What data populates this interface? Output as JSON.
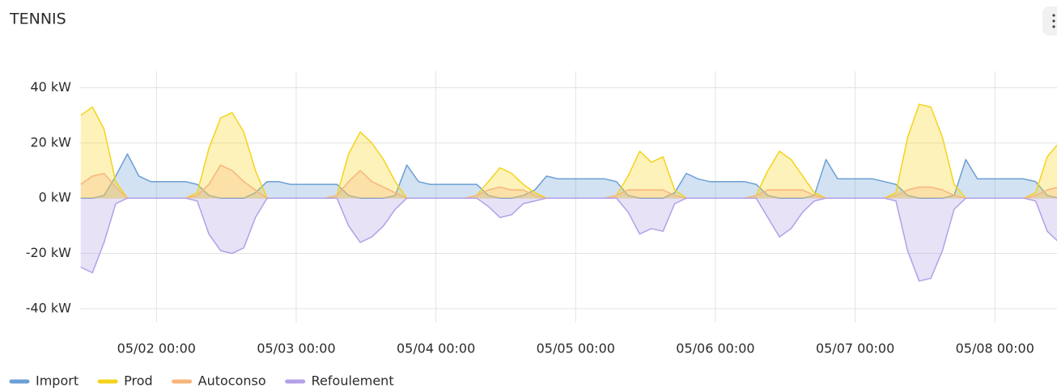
{
  "chart_data": {
    "type": "area",
    "title": "TENNIS",
    "x": [
      "05/01 11:00",
      "05/01 13:00",
      "05/01 15:00",
      "05/01 17:00",
      "05/01 19:00",
      "05/01 21:00",
      "05/01 23:00",
      "05/02 01:00",
      "05/02 03:00",
      "05/02 05:00",
      "05/02 07:00",
      "05/02 09:00",
      "05/02 11:00",
      "05/02 13:00",
      "05/02 15:00",
      "05/02 17:00",
      "05/02 19:00",
      "05/02 21:00",
      "05/02 23:00",
      "05/03 01:00",
      "05/03 03:00",
      "05/03 05:00",
      "05/03 07:00",
      "05/03 09:00",
      "05/03 11:00",
      "05/03 13:00",
      "05/03 15:00",
      "05/03 17:00",
      "05/03 19:00",
      "05/03 21:00",
      "05/03 23:00",
      "05/04 01:00",
      "05/04 03:00",
      "05/04 05:00",
      "05/04 07:00",
      "05/04 09:00",
      "05/04 11:00",
      "05/04 13:00",
      "05/04 15:00",
      "05/04 17:00",
      "05/04 19:00",
      "05/04 21:00",
      "05/04 23:00",
      "05/05 01:00",
      "05/05 03:00",
      "05/05 05:00",
      "05/05 07:00",
      "05/05 09:00",
      "05/05 11:00",
      "05/05 13:00",
      "05/05 15:00",
      "05/05 17:00",
      "05/05 19:00",
      "05/05 21:00",
      "05/05 23:00",
      "05/06 01:00",
      "05/06 03:00",
      "05/06 05:00",
      "05/06 07:00",
      "05/06 09:00",
      "05/06 11:00",
      "05/06 13:00",
      "05/06 15:00",
      "05/06 17:00",
      "05/06 19:00",
      "05/06 21:00",
      "05/06 23:00",
      "05/07 01:00",
      "05/07 03:00",
      "05/07 05:00",
      "05/07 07:00",
      "05/07 09:00",
      "05/07 11:00",
      "05/07 13:00",
      "05/07 15:00",
      "05/07 17:00",
      "05/07 19:00",
      "05/07 21:00",
      "05/07 23:00",
      "05/08 01:00",
      "05/08 03:00",
      "05/08 05:00",
      "05/08 07:00",
      "05/08 09:00",
      "05/08 11:00"
    ],
    "series": [
      {
        "name": "Import",
        "color": "#6a9fd4",
        "values": [
          0,
          0,
          1,
          8,
          16,
          8,
          6,
          6,
          6,
          6,
          5,
          1,
          0,
          0,
          0,
          2,
          6,
          6,
          5,
          5,
          5,
          5,
          5,
          1,
          0,
          0,
          0,
          1,
          12,
          6,
          5,
          5,
          5,
          5,
          5,
          1,
          0,
          0,
          1,
          3,
          8,
          7,
          7,
          7,
          7,
          7,
          6,
          1,
          0,
          0,
          0,
          2,
          9,
          7,
          6,
          6,
          6,
          6,
          5,
          1,
          0,
          0,
          0,
          1,
          14,
          7,
          7,
          7,
          7,
          6,
          5,
          1,
          0,
          0,
          0,
          1,
          14,
          7,
          7,
          7,
          7,
          7,
          6,
          1,
          0
        ]
      },
      {
        "name": "Prod",
        "color": "#f5d31c",
        "values": [
          30,
          33,
          25,
          6,
          0,
          0,
          0,
          0,
          0,
          0,
          2,
          18,
          29,
          31,
          24,
          10,
          0,
          0,
          0,
          0,
          0,
          0,
          1,
          16,
          24,
          20,
          14,
          6,
          0,
          0,
          0,
          0,
          0,
          0,
          1,
          6,
          11,
          9,
          5,
          2,
          0,
          0,
          0,
          0,
          0,
          0,
          1,
          8,
          17,
          13,
          15,
          3,
          0,
          0,
          0,
          0,
          0,
          0,
          1,
          10,
          17,
          14,
          8,
          2,
          0,
          0,
          0,
          0,
          0,
          0,
          2,
          22,
          34,
          33,
          22,
          5,
          0,
          0,
          0,
          0,
          0,
          0,
          2,
          15,
          20
        ]
      },
      {
        "name": "Autoconso",
        "color": "#f7b57c",
        "values": [
          5,
          8,
          9,
          4,
          0,
          0,
          0,
          0,
          0,
          0,
          1,
          5,
          12,
          10,
          6,
          3,
          0,
          0,
          0,
          0,
          0,
          0,
          1,
          6,
          10,
          6,
          4,
          2,
          0,
          0,
          0,
          0,
          0,
          0,
          1,
          3,
          4,
          3,
          3,
          1,
          0,
          0,
          0,
          0,
          0,
          0,
          1,
          3,
          3,
          3,
          3,
          1,
          0,
          0,
          0,
          0,
          0,
          0,
          1,
          3,
          3,
          3,
          3,
          1,
          0,
          0,
          0,
          0,
          0,
          0,
          1,
          3,
          4,
          4,
          3,
          1,
          0,
          0,
          0,
          0,
          0,
          0,
          1,
          3,
          4
        ]
      },
      {
        "name": "Refoulement",
        "color": "#b3a0e6",
        "values": [
          -25,
          -27,
          -16,
          -2,
          0,
          0,
          0,
          0,
          0,
          0,
          -1,
          -13,
          -19,
          -20,
          -18,
          -7,
          0,
          0,
          0,
          0,
          0,
          0,
          0,
          -10,
          -16,
          -14,
          -10,
          -4,
          0,
          0,
          0,
          0,
          0,
          0,
          0,
          -3,
          -7,
          -6,
          -2,
          -1,
          0,
          0,
          0,
          0,
          0,
          0,
          0,
          -5,
          -13,
          -11,
          -12,
          -2,
          0,
          0,
          0,
          0,
          0,
          0,
          0,
          -7,
          -14,
          -11,
          -5,
          -1,
          0,
          0,
          0,
          0,
          0,
          0,
          -1,
          -19,
          -30,
          -29,
          -19,
          -4,
          0,
          0,
          0,
          0,
          0,
          0,
          -1,
          -12,
          -16
        ]
      }
    ],
    "xlim": [
      "05/01 10:45",
      "05/08 10:40"
    ],
    "xticks": [
      "05/02 00:00",
      "05/03 00:00",
      "05/04 00:00",
      "05/05 00:00",
      "05/06 00:00",
      "05/07 00:00",
      "05/08 00:00"
    ],
    "ylim": [
      -45,
      46
    ],
    "yticks": [
      {
        "value": -40,
        "label": "-40 kW"
      },
      {
        "value": -20,
        "label": "-20 kW"
      },
      {
        "value": 0,
        "label": "0 kW"
      },
      {
        "value": 20,
        "label": "20 kW"
      },
      {
        "value": 40,
        "label": "40 kW"
      }
    ],
    "grid": true
  }
}
